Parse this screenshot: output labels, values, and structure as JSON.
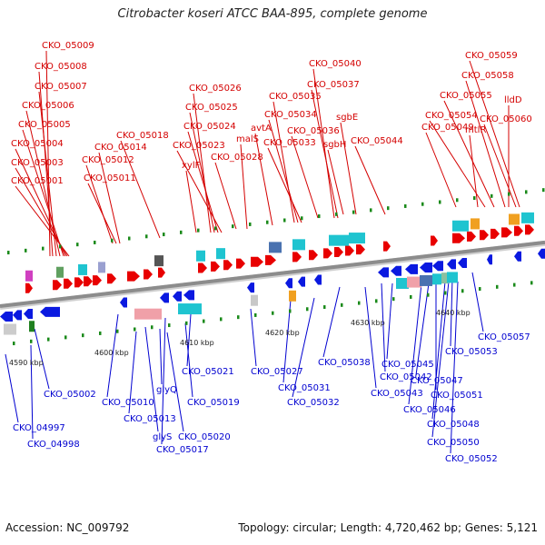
{
  "title": "Citrobacter koseri ATCC BAA-895, complete genome",
  "footer": {
    "accession": "Accession: NC_009792",
    "summary": "Topology: circular; Length: 4,720,462 bp; Genes: 5,121"
  },
  "axis_ticks": [
    "4590 kbp",
    "4600 kbp",
    "4610 kbp",
    "4620 kbp",
    "4630 kbp",
    "4640 kbp"
  ],
  "top_labels": [
    "CKO_05009",
    "CKO_05008",
    "CKO_05007",
    "CKO_05006",
    "CKO_05005",
    "CKO_05004",
    "CKO_05003",
    "CKO_05001",
    "CKO_05012",
    "CKO_05011",
    "CKO_05014",
    "CKO_05018",
    "CKO_05026",
    "CKO_05025",
    "CKO_05024",
    "CKO_05023",
    "xylF",
    "CKO_05028",
    "malS",
    "avtA",
    "CKO_05035",
    "CKO_05034",
    "CKO_05033",
    "CKO_05040",
    "CKO_05037",
    "CKO_05036",
    "sgbE",
    "sgbH",
    "CKO_05044",
    "CKO_05059",
    "CKO_05058",
    "CKO_05055",
    "CKO_05054",
    "CKO_05049",
    "mtlR",
    "CKO_05060",
    "lldD"
  ],
  "bottom_labels": [
    "CKO_05002",
    "CKO_04997",
    "CKO_04998",
    "CKO_05010",
    "CKO_05013",
    "glyQ",
    "CKO_05019",
    "glyS",
    "CKO_05020",
    "CKO_05017",
    "CKO_05021",
    "CKO_05027",
    "CKO_05031",
    "CKO_05032",
    "CKO_05038",
    "CKO_05042",
    "CKO_05045",
    "CKO_05043",
    "CKO_05046",
    "CKO_05047",
    "CKO_05048",
    "CKO_05050",
    "CKO_05052",
    "CKO_05051",
    "CKO_05053",
    "CKO_05057"
  ],
  "colors": {
    "forward_gene": "#e80000",
    "reverse_gene": "#0a19e0",
    "forward_label": "#d40000",
    "reverse_label": "#0000d0",
    "rna_cyan": "#1fc4d0",
    "backbone": "#8c8c8c"
  }
}
